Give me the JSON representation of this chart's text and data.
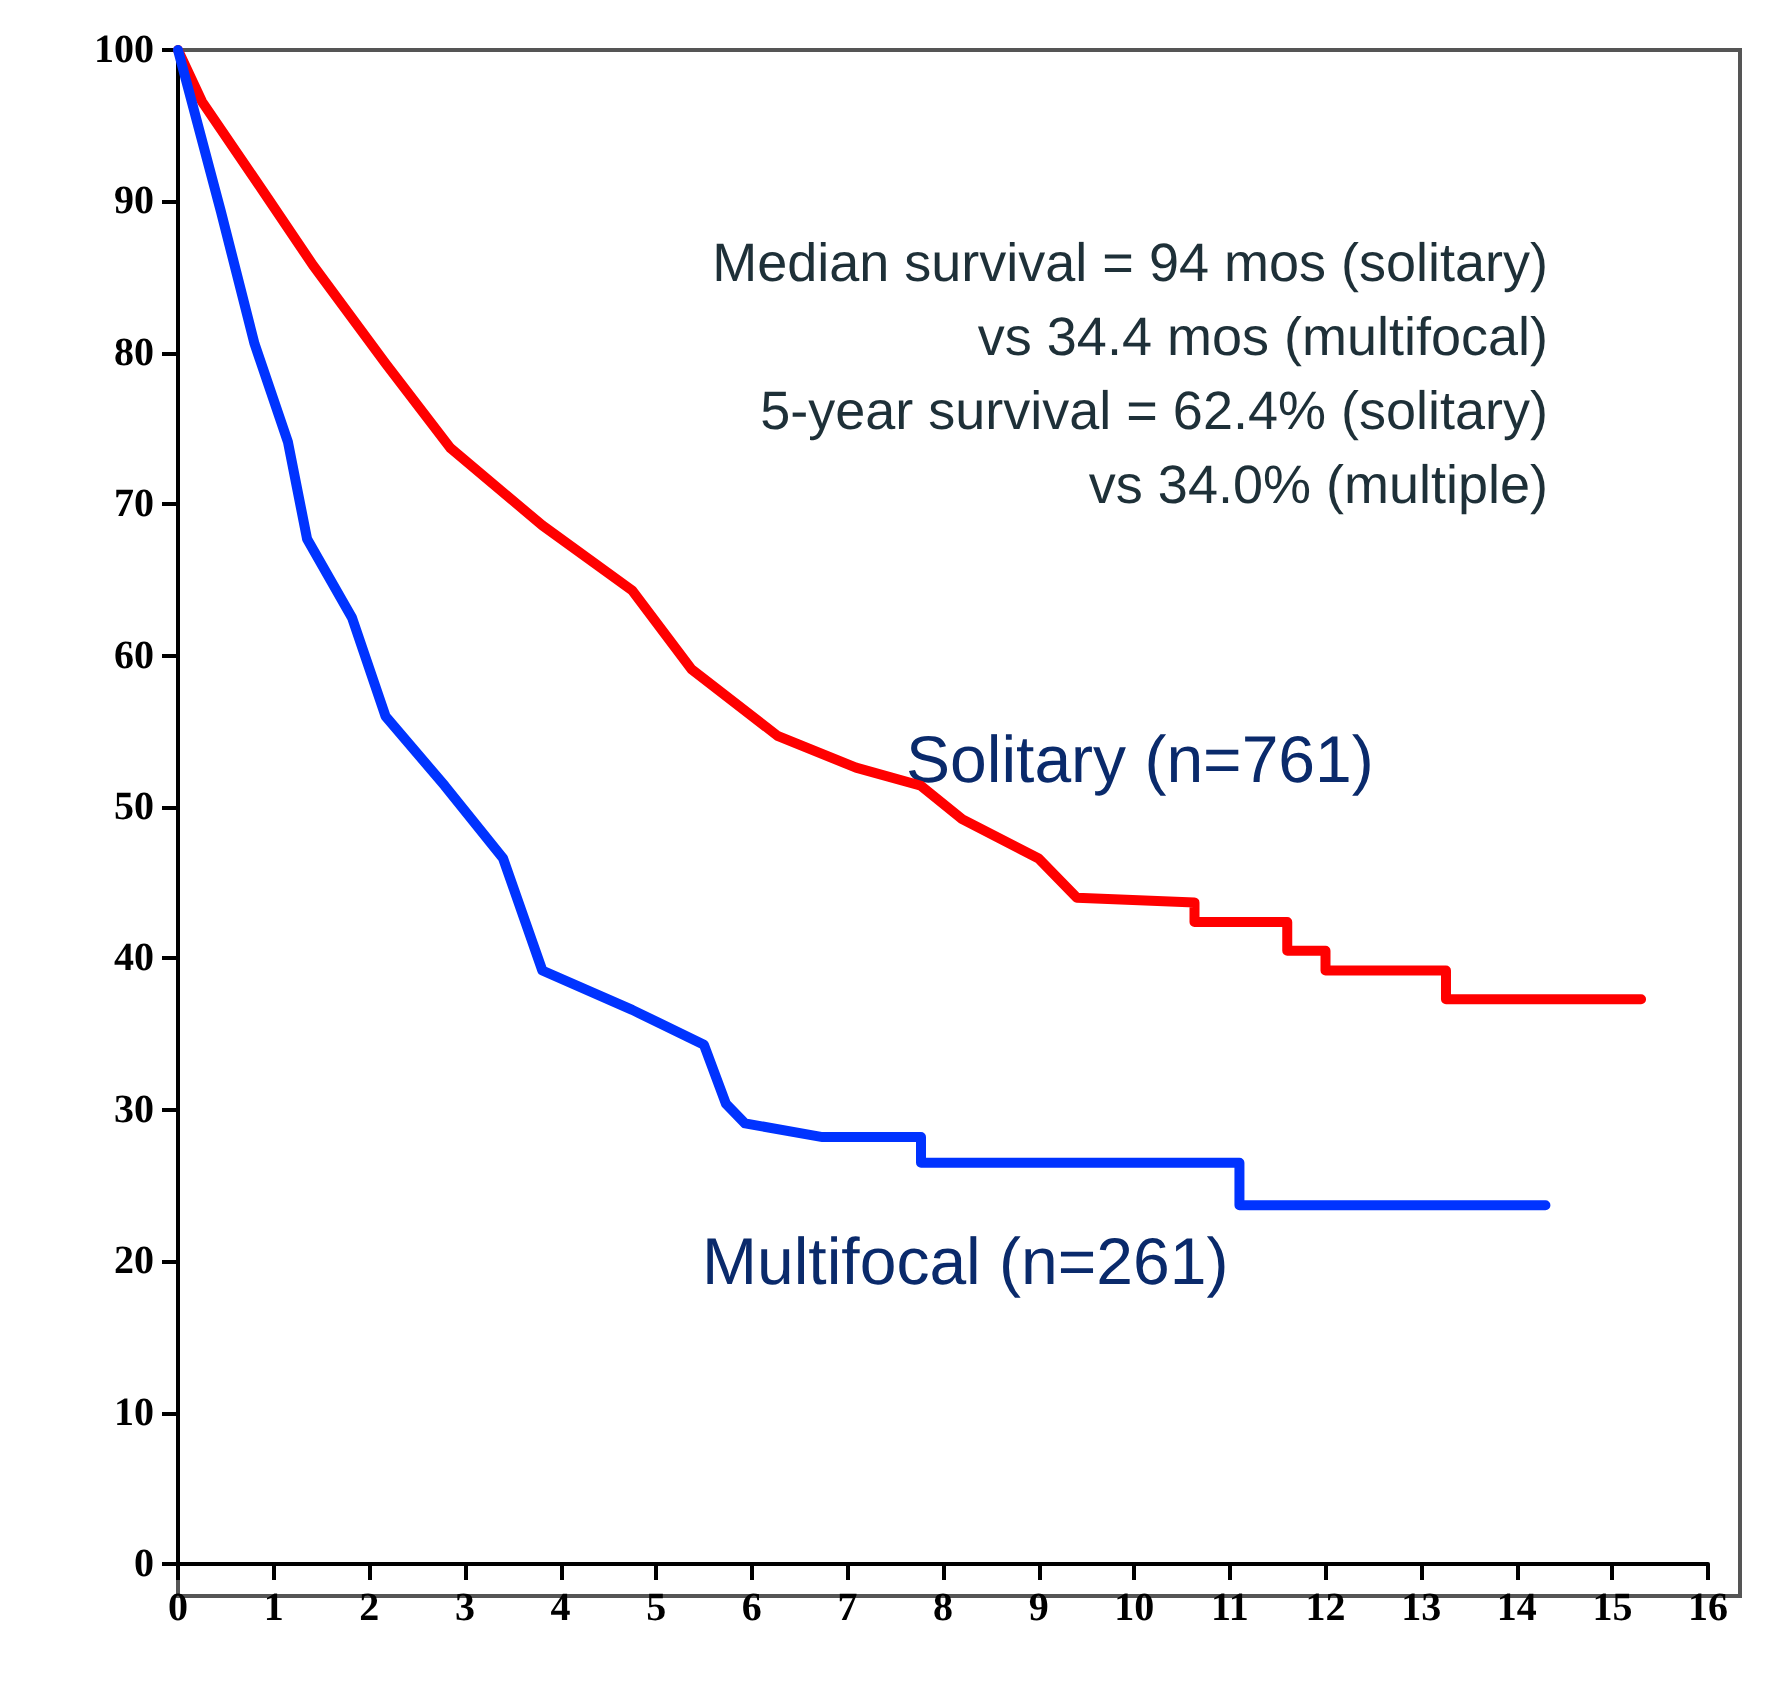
{
  "chart_data": {
    "type": "line",
    "xlim": [
      0,
      16
    ],
    "ylim": [
      0,
      100
    ],
    "xticks": [
      0,
      1,
      2,
      3,
      4,
      5,
      6,
      7,
      8,
      9,
      10,
      11,
      12,
      13,
      14,
      15,
      16
    ],
    "yticks": [
      0,
      10,
      20,
      30,
      40,
      50,
      60,
      70,
      80,
      90,
      100
    ],
    "grid": false,
    "legend": false,
    "marker": "none",
    "line_style": "solid",
    "annotations": [
      "Median survival = 94 mos (solitary)",
      "vs 34.4 mos (multifocal)",
      "5-year survival = 62.4% (solitary)",
      "vs 34.0% (multiple)"
    ],
    "series": [
      {
        "name": "Solitary (n=761)",
        "color": "#ff0000",
        "x": [
          0,
          0.25,
          0.94,
          1.41,
          2.17,
          2.85,
          3.81,
          4.75,
          5.37,
          6.27,
          7.09,
          7.77,
          8.2,
          9.0,
          9.4,
          10.63,
          10.63,
          11.6,
          11.6,
          12.0,
          12.0,
          13.26,
          13.26,
          15.3
        ],
        "values": [
          100,
          96.6,
          90.2,
          85.8,
          79.3,
          73.7,
          68.6,
          64.3,
          59.1,
          54.7,
          52.6,
          51.4,
          49.2,
          46.6,
          44,
          43.7,
          42.4,
          42.4,
          40.5,
          40.5,
          39.2,
          39.2,
          37.3,
          37.3
        ]
      },
      {
        "name": "Multifocal (n=261)",
        "color": "#0033ff",
        "x": [
          0,
          0.45,
          0.8,
          1.15,
          1.35,
          1.82,
          2.17,
          2.79,
          3.4,
          3.81,
          4.75,
          5.5,
          5.73,
          5.93,
          6.74,
          7.77,
          7.77,
          11.1,
          11.1,
          14.3
        ],
        "values": [
          100,
          89.3,
          80.6,
          74.1,
          67.7,
          62.5,
          56,
          51.4,
          46.6,
          39.2,
          36.6,
          34.3,
          30.4,
          29.1,
          28.2,
          28.2,
          26.5,
          26.5,
          23.7,
          23.7
        ]
      }
    ]
  }
}
